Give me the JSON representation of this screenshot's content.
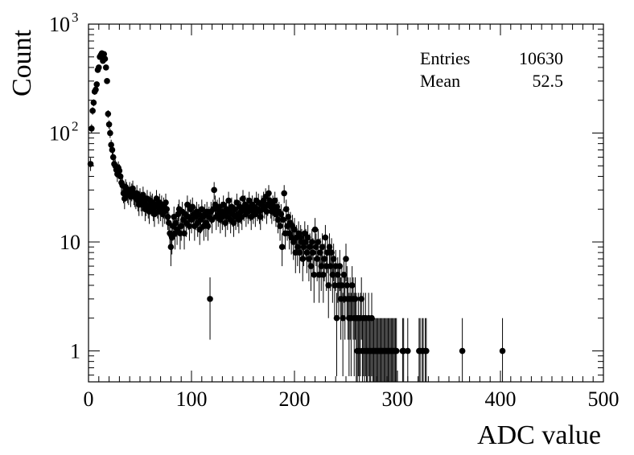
{
  "chart_data": {
    "type": "scatter",
    "xlabel": "ADC value",
    "ylabel": "Count",
    "xlim": [
      0,
      500
    ],
    "ylim": [
      0.52,
      1000
    ],
    "y_scale": "log",
    "grid": false,
    "x_ticks": [
      0,
      100,
      200,
      300,
      400,
      500
    ],
    "y_ticks": [
      {
        "value": 1,
        "label": "1"
      },
      {
        "value": 10,
        "label": "10"
      },
      {
        "value": 100,
        "label": "10",
        "sup": "2"
      },
      {
        "value": 1000,
        "label": "10",
        "sup": "3"
      }
    ],
    "stats": [
      {
        "name": "Entries",
        "value": "10630"
      },
      {
        "name": "Mean",
        "value": "52.5"
      }
    ],
    "series": [
      {
        "points": [
          [
            2,
            52
          ],
          [
            3,
            110
          ],
          [
            4,
            160
          ],
          [
            5,
            190
          ],
          [
            6,
            240
          ],
          [
            7,
            250
          ],
          [
            8,
            280
          ],
          [
            9,
            380
          ],
          [
            10,
            400
          ],
          [
            11,
            500
          ],
          [
            12,
            520
          ],
          [
            13,
            540
          ],
          [
            14,
            460
          ],
          [
            15,
            530
          ],
          [
            16,
            480
          ],
          [
            17,
            400
          ],
          [
            18,
            300
          ],
          [
            19,
            150
          ],
          [
            20,
            120
          ],
          [
            21,
            100
          ],
          [
            22,
            78
          ],
          [
            23,
            70
          ],
          [
            24,
            60
          ],
          [
            25,
            52
          ],
          [
            26,
            50
          ],
          [
            27,
            46
          ],
          [
            28,
            42
          ],
          [
            29,
            48
          ],
          [
            30,
            45
          ],
          [
            31,
            40
          ],
          [
            32,
            35
          ],
          [
            33,
            33
          ],
          [
            34,
            28
          ],
          [
            35,
            25
          ],
          [
            36,
            32
          ],
          [
            37,
            30
          ],
          [
            38,
            28
          ],
          [
            39,
            27
          ],
          [
            40,
            30
          ],
          [
            41,
            26
          ],
          [
            42,
            29
          ],
          [
            43,
            31
          ],
          [
            44,
            27
          ],
          [
            45,
            26
          ],
          [
            46,
            25
          ],
          [
            47,
            28
          ],
          [
            48,
            24
          ],
          [
            49,
            22
          ],
          [
            50,
            26
          ],
          [
            51,
            24
          ],
          [
            52,
            22
          ],
          [
            53,
            27
          ],
          [
            54,
            24
          ],
          [
            55,
            20
          ],
          [
            56,
            22
          ],
          [
            57,
            25
          ],
          [
            58,
            21
          ],
          [
            59,
            19
          ],
          [
            60,
            24
          ],
          [
            61,
            22
          ],
          [
            62,
            23
          ],
          [
            63,
            20
          ],
          [
            64,
            18
          ],
          [
            65,
            22
          ],
          [
            66,
            25
          ],
          [
            67,
            21
          ],
          [
            68,
            19
          ],
          [
            69,
            23
          ],
          [
            70,
            20
          ],
          [
            71,
            22
          ],
          [
            72,
            18
          ],
          [
            73,
            21
          ],
          [
            74,
            19
          ],
          [
            75,
            23
          ],
          [
            76,
            20
          ],
          [
            77,
            17
          ],
          [
            78,
            15
          ],
          [
            79,
            12
          ],
          [
            80,
            9
          ],
          [
            81,
            11
          ],
          [
            82,
            14
          ],
          [
            83,
            17
          ],
          [
            84,
            12
          ],
          [
            85,
            15
          ],
          [
            86,
            13
          ],
          [
            87,
            18
          ],
          [
            88,
            20
          ],
          [
            89,
            12
          ],
          [
            90,
            14
          ],
          [
            91,
            19
          ],
          [
            92,
            16
          ],
          [
            93,
            12
          ],
          [
            94,
            18
          ],
          [
            95,
            15
          ],
          [
            96,
            22
          ],
          [
            97,
            17
          ],
          [
            98,
            14
          ],
          [
            99,
            20
          ],
          [
            100,
            16
          ],
          [
            101,
            21
          ],
          [
            102,
            18
          ],
          [
            103,
            14
          ],
          [
            104,
            17
          ],
          [
            105,
            19
          ],
          [
            106,
            15
          ],
          [
            107,
            18
          ],
          [
            108,
            13
          ],
          [
            109,
            16
          ],
          [
            110,
            20
          ],
          [
            111,
            17
          ],
          [
            112,
            14
          ],
          [
            113,
            18
          ],
          [
            114,
            15
          ],
          [
            115,
            19
          ],
          [
            116,
            14
          ],
          [
            117,
            17
          ],
          [
            118,
            3
          ],
          [
            119,
            19
          ],
          [
            120,
            16
          ],
          [
            121,
            20
          ],
          [
            122,
            30
          ],
          [
            123,
            22
          ],
          [
            124,
            17
          ],
          [
            125,
            20
          ],
          [
            126,
            18
          ],
          [
            127,
            21
          ],
          [
            128,
            16
          ],
          [
            129,
            19
          ],
          [
            130,
            17
          ],
          [
            131,
            22
          ],
          [
            132,
            18
          ],
          [
            133,
            15
          ],
          [
            134,
            20
          ],
          [
            135,
            17
          ],
          [
            136,
            24
          ],
          [
            137,
            19
          ],
          [
            138,
            16
          ],
          [
            139,
            21
          ],
          [
            140,
            18
          ],
          [
            141,
            15
          ],
          [
            142,
            20
          ],
          [
            143,
            17
          ],
          [
            144,
            23
          ],
          [
            145,
            18
          ],
          [
            146,
            16
          ],
          [
            147,
            21
          ],
          [
            148,
            19
          ],
          [
            149,
            17
          ],
          [
            150,
            25
          ],
          [
            151,
            20
          ],
          [
            152,
            22
          ],
          [
            153,
            18
          ],
          [
            154,
            21
          ],
          [
            155,
            19
          ],
          [
            156,
            24
          ],
          [
            157,
            20
          ],
          [
            158,
            17
          ],
          [
            159,
            22
          ],
          [
            160,
            19
          ],
          [
            161,
            21
          ],
          [
            162,
            18
          ],
          [
            163,
            24
          ],
          [
            164,
            20
          ],
          [
            165,
            23
          ],
          [
            166,
            19
          ],
          [
            167,
            17
          ],
          [
            168,
            22
          ],
          [
            169,
            20
          ],
          [
            170,
            24
          ],
          [
            171,
            21
          ],
          [
            172,
            26
          ],
          [
            173,
            19
          ],
          [
            174,
            22
          ],
          [
            175,
            28
          ],
          [
            176,
            24
          ],
          [
            177,
            21
          ],
          [
            178,
            19
          ],
          [
            179,
            22
          ],
          [
            180,
            20
          ],
          [
            181,
            24
          ],
          [
            182,
            18
          ],
          [
            183,
            21
          ],
          [
            184,
            16
          ],
          [
            185,
            19
          ],
          [
            186,
            14
          ],
          [
            187,
            18
          ],
          [
            188,
            9
          ],
          [
            189,
            16
          ],
          [
            190,
            28
          ],
          [
            191,
            12
          ],
          [
            192,
            20
          ],
          [
            193,
            14
          ],
          [
            194,
            17
          ],
          [
            195,
            12
          ],
          [
            196,
            15
          ],
          [
            197,
            11
          ],
          [
            198,
            14
          ],
          [
            199,
            10
          ],
          [
            200,
            13
          ],
          [
            201,
            8
          ],
          [
            202,
            11
          ],
          [
            203,
            9
          ],
          [
            204,
            12
          ],
          [
            205,
            8
          ],
          [
            206,
            11
          ],
          [
            207,
            10
          ],
          [
            208,
            7
          ],
          [
            209,
            9
          ],
          [
            210,
            12
          ],
          [
            211,
            10
          ],
          [
            212,
            8
          ],
          [
            213,
            11
          ],
          [
            214,
            7
          ],
          [
            215,
            9
          ],
          [
            216,
            6
          ],
          [
            217,
            10
          ],
          [
            218,
            8
          ],
          [
            219,
            5
          ],
          [
            220,
            13
          ],
          [
            221,
            9
          ],
          [
            222,
            7
          ],
          [
            223,
            10
          ],
          [
            224,
            5
          ],
          [
            225,
            8
          ],
          [
            226,
            6
          ],
          [
            227,
            9
          ],
          [
            228,
            5
          ],
          [
            229,
            7
          ],
          [
            230,
            11
          ],
          [
            231,
            6
          ],
          [
            232,
            8
          ],
          [
            233,
            4
          ],
          [
            234,
            9
          ],
          [
            235,
            6
          ],
          [
            236,
            8
          ],
          [
            237,
            5
          ],
          [
            238,
            7
          ],
          [
            239,
            4
          ],
          [
            240,
            6
          ],
          [
            241,
            2
          ],
          [
            242,
            5
          ],
          [
            243,
            4
          ],
          [
            244,
            6
          ],
          [
            245,
            3
          ],
          [
            246,
            4
          ],
          [
            247,
            2
          ],
          [
            248,
            5
          ],
          [
            249,
            3
          ],
          [
            250,
            7
          ],
          [
            251,
            4
          ],
          [
            252,
            3
          ],
          [
            253,
            2
          ],
          [
            254,
            3
          ],
          [
            255,
            2
          ],
          [
            256,
            4
          ],
          [
            257,
            3
          ],
          [
            258,
            2
          ],
          [
            259,
            3
          ],
          [
            260,
            2
          ],
          [
            261,
            1
          ],
          [
            262,
            2
          ],
          [
            263,
            1
          ],
          [
            264,
            2
          ],
          [
            265,
            3
          ],
          [
            266,
            1
          ],
          [
            267,
            2
          ],
          [
            268,
            1
          ],
          [
            269,
            2
          ],
          [
            270,
            1
          ],
          [
            271,
            1
          ],
          [
            272,
            2
          ],
          [
            273,
            1
          ],
          [
            274,
            1
          ],
          [
            275,
            2
          ],
          [
            276,
            1
          ],
          [
            277,
            1
          ],
          [
            278,
            1
          ],
          [
            279,
            1
          ],
          [
            280,
            1
          ],
          [
            281,
            1
          ],
          [
            282,
            1
          ],
          [
            283,
            1
          ],
          [
            284,
            1
          ],
          [
            285,
            1
          ],
          [
            286,
            1
          ],
          [
            287,
            1
          ],
          [
            288,
            1
          ],
          [
            289,
            1
          ],
          [
            290,
            1
          ],
          [
            291,
            1
          ],
          [
            292,
            1
          ],
          [
            293,
            1
          ],
          [
            294,
            1
          ],
          [
            295,
            1
          ],
          [
            296,
            1
          ],
          [
            297,
            1
          ],
          [
            298,
            1
          ],
          [
            299,
            1
          ],
          [
            305,
            1
          ],
          [
            306,
            1
          ],
          [
            310,
            1
          ],
          [
            321,
            1
          ],
          [
            322,
            1
          ],
          [
            324,
            1
          ],
          [
            325,
            1
          ],
          [
            327,
            1
          ],
          [
            328,
            1
          ],
          [
            363,
            1
          ],
          [
            402,
            1
          ]
        ]
      }
    ]
  }
}
